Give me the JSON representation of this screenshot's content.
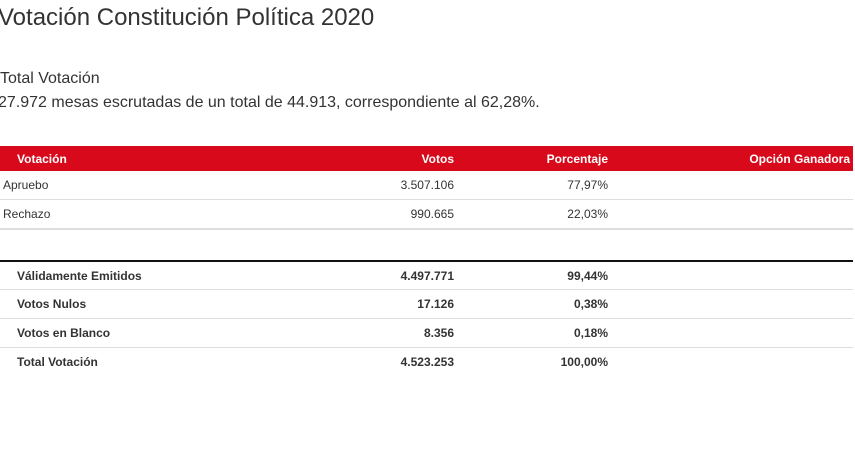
{
  "page": {
    "title": "Votación Constitución Política 2020",
    "subtitle": "Total Votación",
    "summary": "27.972 mesas escrutadas de un total de 44.913, correspondiente al 62,28%."
  },
  "table": {
    "headers": {
      "votacion": "Votación",
      "votos": "Votos",
      "porcentaje": "Porcentaje",
      "ganadora": "Opción Ganadora"
    },
    "options": [
      {
        "name": "Apruebo",
        "votes": "3.507.106",
        "percent": "77,97%",
        "winner": ""
      },
      {
        "name": "Rechazo",
        "votes": "990.665",
        "percent": "22,03%",
        "winner": ""
      }
    ],
    "totals": [
      {
        "name": "Válidamente Emitidos",
        "votes": "4.497.771",
        "percent": "99,44%"
      },
      {
        "name": "Votos Nulos",
        "votes": "17.126",
        "percent": "0,38%"
      },
      {
        "name": "Votos en Blanco",
        "votes": "8.356",
        "percent": "0,18%"
      },
      {
        "name": "Total Votación",
        "votes": "4.523.253",
        "percent": "100,00%"
      }
    ]
  },
  "colors": {
    "header_bg": "#d7091a",
    "header_text": "#ffffff",
    "text": "#333333"
  }
}
